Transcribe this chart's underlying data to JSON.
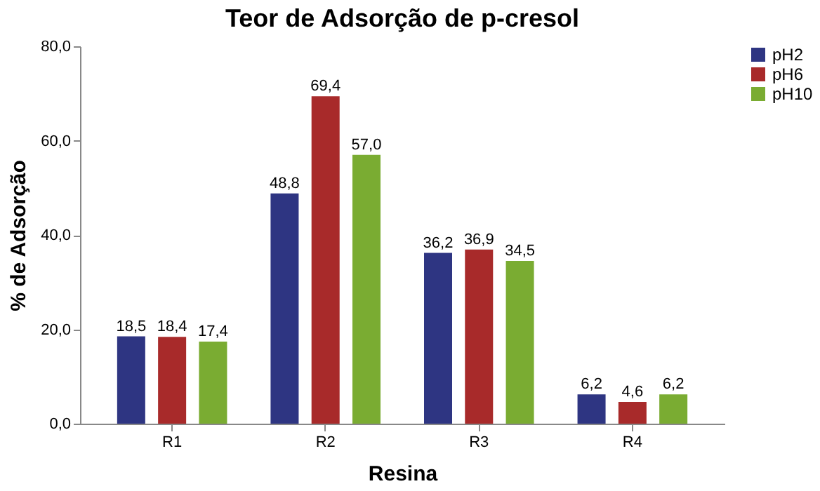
{
  "chart_data": {
    "type": "bar",
    "title": "Teor de Adsorção de p-cresol",
    "xlabel": "Resina",
    "ylabel": "% de Adsorção",
    "categories": [
      "R1",
      "R2",
      "R3",
      "R4"
    ],
    "series": [
      {
        "name": "pH2",
        "color": "#2e3582",
        "values": [
          18.5,
          48.8,
          36.2,
          6.2
        ],
        "value_labels": [
          "18,5",
          "48,8",
          "36,2",
          "6,2"
        ]
      },
      {
        "name": "pH6",
        "color": "#a82a2a",
        "values": [
          18.4,
          69.4,
          36.9,
          4.6
        ],
        "value_labels": [
          "18,4",
          "69,4",
          "36,9",
          "4,6"
        ]
      },
      {
        "name": "pH10",
        "color": "#7aac32",
        "values": [
          17.4,
          57.0,
          34.5,
          6.2
        ],
        "value_labels": [
          "17,4",
          "57,0",
          "34,5",
          "6,2"
        ]
      }
    ],
    "ylim": [
      0,
      80
    ],
    "yticks": [
      {
        "value": 0,
        "label": "0,0"
      },
      {
        "value": 20,
        "label": "20,0"
      },
      {
        "value": 40,
        "label": "40,0"
      },
      {
        "value": 60,
        "label": "60,0"
      },
      {
        "value": 80,
        "label": "80,0"
      }
    ],
    "grid": false,
    "legend": "right"
  }
}
